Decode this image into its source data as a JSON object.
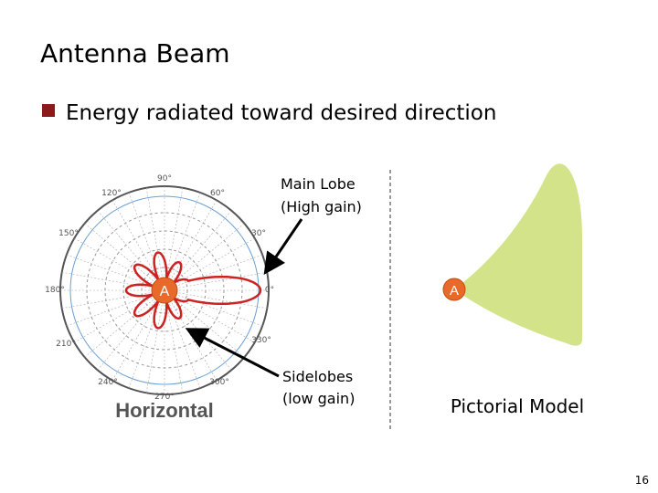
{
  "title": "Antenna Beam",
  "bullet": "Energy radiated toward desired direction",
  "polar_plot": {
    "angle_labels": [
      "90°",
      "60°",
      "30°",
      "0°",
      "330°",
      "300°",
      "270°",
      "240°",
      "210°",
      "180°",
      "150°",
      "120°"
    ],
    "source_label": "A",
    "caption": "Horizontal"
  },
  "callouts": {
    "main_lobe": [
      "Main Lobe",
      "(High gain)"
    ],
    "sidelobes": [
      "Sidelobes",
      "(low gain)"
    ]
  },
  "model": {
    "source_label": "A",
    "caption": "Pictorial Model"
  },
  "page_number": "16"
}
